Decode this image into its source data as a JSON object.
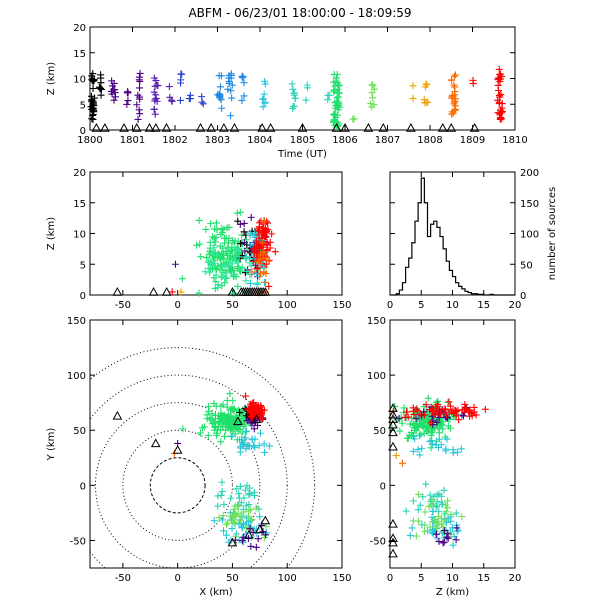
{
  "title": "ABFM - 06/23/01 18:00:00 - 18:09:59",
  "colors": {
    "ink": "#000000",
    "series": [
      "#000000",
      "#4b0082",
      "#5a1fb0",
      "#2a3fd0",
      "#1e88e5",
      "#26c6da",
      "#2ed3b7",
      "#34e6a0",
      "#1ee06a",
      "#6ee05a",
      "#f2a000",
      "#ff6a00",
      "#ff0000"
    ]
  },
  "chart_data": [
    {
      "id": "time-height",
      "type": "scatter",
      "marker": "plus",
      "xlabel": "Time (UT)",
      "ylabel": "Z (km)",
      "xlim": [
        0,
        10
      ],
      "ylim": [
        0,
        20
      ],
      "xticks": [
        0,
        1,
        2,
        3,
        4,
        5,
        6,
        7,
        8,
        9,
        10
      ],
      "xtick_labels": [
        "1800",
        "1801",
        "1802",
        "1803",
        "1804",
        "1805",
        "1806",
        "1807",
        "1808",
        "1809",
        "1810"
      ],
      "yticks": [
        0,
        5,
        10,
        15,
        20
      ],
      "ytick_labels": [
        "0",
        "5",
        "10",
        "15",
        "20"
      ],
      "grid": false,
      "columns": [
        {
          "t": 0.05,
          "zmin": 2,
          "zmax": 11,
          "c": 0,
          "n": 34,
          "w": 0.12
        },
        {
          "t": 0.25,
          "zmin": 5,
          "zmax": 11,
          "c": 0,
          "n": 8,
          "w": 0.06
        },
        {
          "t": 0.55,
          "zmin": 3,
          "zmax": 10,
          "c": 1,
          "n": 10,
          "w": 0.1
        },
        {
          "t": 0.9,
          "zmin": 4,
          "zmax": 8,
          "c": 1,
          "n": 5,
          "w": 0.08
        },
        {
          "t": 1.15,
          "zmin": 2,
          "zmax": 11,
          "c": 1,
          "n": 12,
          "w": 0.1
        },
        {
          "t": 1.55,
          "zmin": 3,
          "zmax": 11,
          "c": 2,
          "n": 14,
          "w": 0.1
        },
        {
          "t": 1.9,
          "zmin": 4,
          "zmax": 9,
          "c": 2,
          "n": 4,
          "w": 0.08
        },
        {
          "t": 2.15,
          "zmin": 4,
          "zmax": 11,
          "c": 3,
          "n": 5,
          "w": 0.08
        },
        {
          "t": 2.35,
          "zmin": 4,
          "zmax": 8,
          "c": 3,
          "n": 3,
          "w": 0.06
        },
        {
          "t": 2.65,
          "zmin": 5,
          "zmax": 8,
          "c": 3,
          "n": 3,
          "w": 0.06
        },
        {
          "t": 3.05,
          "zmin": 4,
          "zmax": 11,
          "c": 4,
          "n": 12,
          "w": 0.1
        },
        {
          "t": 3.3,
          "zmin": 2,
          "zmax": 11,
          "c": 4,
          "n": 12,
          "w": 0.12
        },
        {
          "t": 3.6,
          "zmin": 5,
          "zmax": 11,
          "c": 4,
          "n": 6,
          "w": 0.08
        },
        {
          "t": 4.1,
          "zmin": 4,
          "zmax": 10,
          "c": 5,
          "n": 8,
          "w": 0.08
        },
        {
          "t": 4.8,
          "zmin": 4,
          "zmax": 9,
          "c": 6,
          "n": 10,
          "w": 0.1
        },
        {
          "t": 5.1,
          "zmin": 5,
          "zmax": 9,
          "c": 6,
          "n": 3,
          "w": 0.06
        },
        {
          "t": 5.6,
          "zmin": 4,
          "zmax": 8,
          "c": 6,
          "n": 3,
          "w": 0.06
        },
        {
          "t": 5.8,
          "zmin": 0,
          "zmax": 11,
          "c": 8,
          "n": 45,
          "w": 0.14
        },
        {
          "t": 6.2,
          "zmin": 2,
          "zmax": 4,
          "c": 9,
          "n": 2,
          "w": 0.04
        },
        {
          "t": 6.65,
          "zmin": 4,
          "zmax": 9,
          "c": 9,
          "n": 8,
          "w": 0.1
        },
        {
          "t": 7.6,
          "zmin": 6,
          "zmax": 10,
          "c": 10,
          "n": 2,
          "w": 0.04
        },
        {
          "t": 7.9,
          "zmin": 1,
          "zmax": 10,
          "c": 10,
          "n": 8,
          "w": 0.1
        },
        {
          "t": 8.55,
          "zmin": 3,
          "zmax": 11,
          "c": 11,
          "n": 22,
          "w": 0.12
        },
        {
          "t": 9.0,
          "zmin": 8,
          "zmax": 10,
          "c": 12,
          "n": 2,
          "w": 0.04
        },
        {
          "t": 9.65,
          "zmin": 2,
          "zmax": 12,
          "c": 12,
          "n": 30,
          "w": 0.12
        }
      ],
      "triangles_z": -0.5,
      "triangles_t": [
        0.15,
        0.35,
        0.8,
        1.1,
        1.4,
        1.55,
        1.8,
        2.6,
        2.85,
        3.15,
        3.4,
        4.05,
        4.25,
        5.0,
        5.8,
        6.0,
        6.55,
        6.9,
        7.55,
        8.3,
        8.5,
        9.05
      ]
    },
    {
      "id": "xz-projection",
      "type": "scatter",
      "marker": "plus",
      "xlabel": "",
      "ylabel": "Z (km)",
      "xlim": [
        -80,
        150
      ],
      "ylim": [
        0,
        20
      ],
      "xticks": [
        -50,
        0,
        50,
        100,
        150
      ],
      "xtick_labels": [
        "-50",
        "0",
        "50",
        "100",
        "150"
      ],
      "yticks": [
        0,
        5,
        10,
        15,
        20
      ],
      "ytick_labels": [
        "0",
        "5",
        "10",
        "15",
        "20"
      ],
      "grid": false,
      "clouds": [
        {
          "cx": 45,
          "cz": 6.5,
          "sx": 12,
          "sz": 2.5,
          "c": 8,
          "n": 140
        },
        {
          "cx": 68,
          "cz": 8,
          "sx": 5,
          "sz": 2.5,
          "c": 0,
          "n": 25
        },
        {
          "cx": 70,
          "cz": 7,
          "sx": 5,
          "sz": 2.5,
          "c": 1,
          "n": 25
        },
        {
          "cx": 72,
          "cz": 7,
          "sx": 5,
          "sz": 2.5,
          "c": 5,
          "n": 35
        },
        {
          "cx": 76,
          "cz": 8,
          "sx": 4,
          "sz": 2.5,
          "c": 12,
          "n": 80
        },
        {
          "cx": 78,
          "cz": 6,
          "sx": 4,
          "sz": 2.5,
          "c": 11,
          "n": 20
        },
        {
          "cx": 50,
          "cz": 5,
          "sx": 12,
          "sz": 2,
          "c": 7,
          "n": 40
        }
      ],
      "extra_points": [
        {
          "x": -2,
          "z": 5,
          "c": 1
        },
        {
          "x": -5,
          "z": 0.5,
          "c": 12
        },
        {
          "x": 3,
          "z": 0.5,
          "c": 10
        }
      ],
      "triangles_z": -0.3,
      "triangles_x": [
        -55,
        -22,
        -10,
        50,
        58,
        60,
        62,
        64,
        66,
        68,
        70,
        72,
        74,
        76,
        78,
        80
      ]
    },
    {
      "id": "altitude-histogram",
      "type": "bar",
      "xlabel": "",
      "ylabel": "number of sources",
      "xlim": [
        0,
        20
      ],
      "ylim": [
        0,
        200
      ],
      "xticks": [
        0,
        5,
        10,
        15,
        20
      ],
      "xtick_labels": [
        "0",
        "5",
        "10",
        "15",
        "20"
      ],
      "yticks": [
        0,
        50,
        100,
        150,
        200
      ],
      "ytick_labels": [
        "0",
        "50",
        "100",
        "150",
        "200"
      ],
      "grid": false,
      "bin_width": 0.5,
      "bins_start": 0,
      "counts": [
        0,
        0,
        2,
        8,
        20,
        45,
        60,
        85,
        120,
        150,
        190,
        150,
        95,
        115,
        120,
        110,
        95,
        75,
        55,
        40,
        30,
        20,
        14,
        10,
        6,
        4,
        2,
        2,
        1,
        1,
        0,
        0,
        1,
        0,
        0,
        0,
        0,
        0,
        0,
        0
      ]
    },
    {
      "id": "plan-view",
      "type": "scatter",
      "marker": "plus",
      "xlabel": "X (km)",
      "ylabel": "Y (km)",
      "xlim": [
        -80,
        150
      ],
      "ylim": [
        -75,
        150
      ],
      "xticks": [
        -50,
        0,
        50,
        100,
        150
      ],
      "xtick_labels": [
        "-50",
        "0",
        "50",
        "100",
        "150"
      ],
      "yticks": [
        -50,
        0,
        50,
        100,
        150
      ],
      "ytick_labels": [
        "-50",
        "0",
        "50",
        "100",
        "150"
      ],
      "grid": false,
      "range_rings_km": [
        25,
        50,
        75,
        100,
        125
      ],
      "clouds": [
        {
          "cx": 45,
          "cy": 58,
          "sx": 10,
          "sy": 8,
          "c": 8,
          "n": 140
        },
        {
          "cx": 68,
          "cy": 65,
          "sx": 4,
          "sy": 3,
          "c": 0,
          "n": 20
        },
        {
          "cx": 70,
          "cy": 60,
          "sx": 4,
          "sy": 3,
          "c": 1,
          "n": 25
        },
        {
          "cx": 72,
          "cy": 68,
          "sx": 4,
          "sy": 3,
          "c": 12,
          "n": 60
        },
        {
          "cx": 65,
          "cy": 35,
          "sx": 8,
          "sy": 6,
          "c": 5,
          "n": 25
        },
        {
          "cx": 55,
          "cy": -15,
          "sx": 10,
          "sy": 8,
          "c": 6,
          "n": 30
        },
        {
          "cx": 60,
          "cy": -40,
          "sx": 12,
          "sy": 6,
          "c": 5,
          "n": 35
        },
        {
          "cx": 55,
          "cy": -30,
          "sx": 12,
          "sy": 8,
          "c": 9,
          "n": 30
        },
        {
          "cx": 65,
          "cy": -45,
          "sx": 8,
          "sy": 5,
          "c": 1,
          "n": 12
        }
      ],
      "extra_points": [
        {
          "x": 0,
          "y": 38,
          "c": 1
        },
        {
          "x": -3,
          "y": 29,
          "c": 11
        },
        {
          "x": 62,
          "y": 81,
          "c": 12
        }
      ],
      "triangles": [
        {
          "x": -55,
          "y": 63
        },
        {
          "x": -20,
          "y": 38
        },
        {
          "x": 0,
          "y": 32
        },
        {
          "x": 50,
          "y": -52
        },
        {
          "x": 65,
          "y": -45
        },
        {
          "x": 75,
          "y": -40
        },
        {
          "x": 80,
          "y": -32
        },
        {
          "x": 55,
          "y": 58
        },
        {
          "x": 72,
          "y": 60
        }
      ]
    },
    {
      "id": "yz-projection",
      "type": "scatter",
      "marker": "plus",
      "xlabel": "Z (km)",
      "ylabel": "",
      "xlim": [
        0,
        20
      ],
      "ylim": [
        -75,
        150
      ],
      "xticks": [
        0,
        5,
        10,
        15,
        20
      ],
      "xtick_labels": [
        "0",
        "5",
        "10",
        "15",
        "20"
      ],
      "yticks": [
        -50,
        0,
        50,
        100,
        150
      ],
      "ytick_labels": [
        "-50",
        "0",
        "50",
        "100",
        "150"
      ],
      "grid": false,
      "clouds": [
        {
          "cz": 6,
          "cy": 58,
          "sz": 2,
          "sy": 8,
          "c": 8,
          "n": 140
        },
        {
          "cz": 8,
          "cy": 64,
          "sz": 2.5,
          "sy": 4,
          "c": 1,
          "n": 25
        },
        {
          "cz": 9,
          "cy": 68,
          "sz": 3,
          "sy": 3,
          "c": 12,
          "n": 60
        },
        {
          "cz": 7,
          "cy": 35,
          "sz": 2,
          "sy": 6,
          "c": 5,
          "n": 20
        },
        {
          "cz": 7,
          "cy": -15,
          "sz": 1.5,
          "sy": 8,
          "c": 6,
          "n": 25
        },
        {
          "cz": 8,
          "cy": -40,
          "sz": 2,
          "sy": 6,
          "c": 5,
          "n": 35
        },
        {
          "cz": 7,
          "cy": -30,
          "sz": 2,
          "sy": 8,
          "c": 9,
          "n": 30
        },
        {
          "cz": 9,
          "cy": -48,
          "sz": 1.5,
          "sy": 4,
          "c": 1,
          "n": 10
        }
      ],
      "extra_points": [
        {
          "z": 2,
          "y": 20,
          "c": 11
        },
        {
          "z": 1,
          "y": 27,
          "c": 10
        }
      ],
      "triangles_z": -0.3,
      "triangles_y": [
        70,
        64,
        60,
        55,
        48,
        35,
        -35,
        -48,
        -52,
        -62
      ]
    }
  ]
}
